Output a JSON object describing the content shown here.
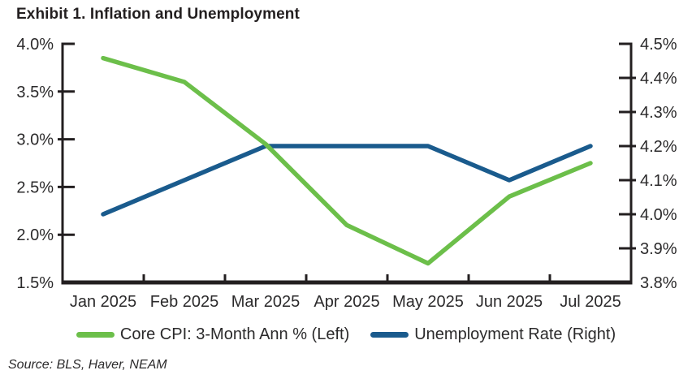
{
  "title": "Exhibit 1. Inflation and Unemployment",
  "source": "Source: BLS, Haver, NEAM",
  "colors": {
    "text": "#231F20",
    "axis": "#231F20",
    "cpi_green": "#6CBF4A",
    "unemployment_blue": "#1A5B8D"
  },
  "chart_data": {
    "type": "line",
    "title": "Exhibit 1. Inflation and Unemployment",
    "x": [
      "Jan 2025",
      "Feb 2025",
      "Mar 2025",
      "Apr 2025",
      "May 2025",
      "Jun 2025",
      "Jul 2025"
    ],
    "left_axis": {
      "min": 1.5,
      "max": 4.0,
      "tick_values": [
        4.0,
        3.5,
        3.0,
        2.5,
        2.0,
        1.5
      ],
      "tick_labels": [
        "4.0%",
        "3.5%",
        "3.0%",
        "2.5%",
        "2.0%",
        "1.5%"
      ]
    },
    "right_axis": {
      "min": 3.8,
      "max": 4.5,
      "tick_values": [
        4.5,
        4.4,
        4.3,
        4.2,
        4.1,
        4.0,
        3.9,
        3.8
      ],
      "tick_labels": [
        "4.5%",
        "4.4%",
        "4.3%",
        "4.2%",
        "4.1%",
        "4.0%",
        "3.9%",
        "3.8%"
      ]
    },
    "series": [
      {
        "name": "Core CPI: 3-Month Ann % (Left)",
        "axis": "left",
        "color": "#6CBF4A",
        "values": [
          3.85,
          3.6,
          2.95,
          2.1,
          1.7,
          2.4,
          2.75
        ]
      },
      {
        "name": "Unemployment Rate (Right)",
        "axis": "right",
        "color": "#1A5B8D",
        "values": [
          4.0,
          4.1,
          4.2,
          4.2,
          4.2,
          4.1,
          4.2
        ]
      }
    ],
    "grid": false,
    "legend_position": "bottom"
  }
}
